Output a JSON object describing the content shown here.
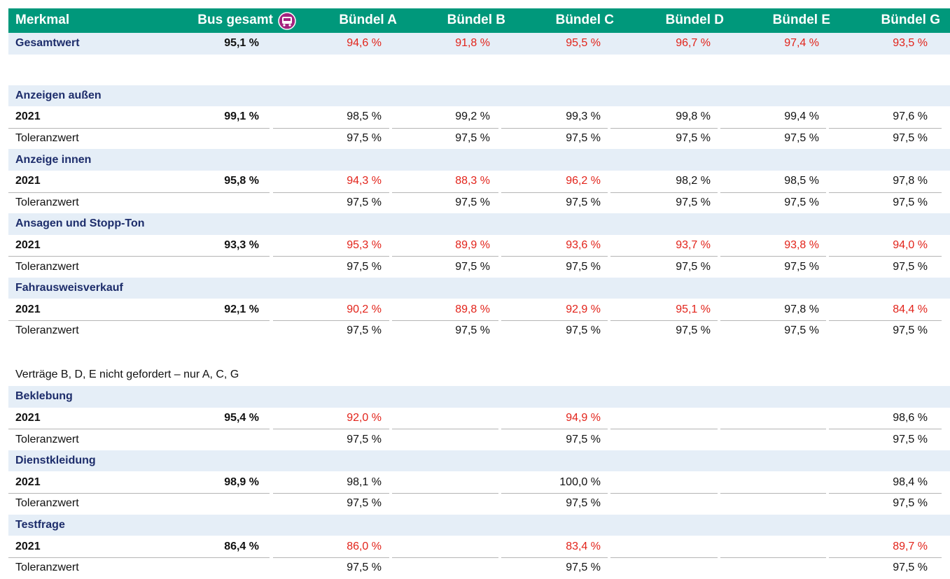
{
  "header": {
    "columns": [
      "Merkmal",
      "Bus gesamt",
      "Bündel A",
      "Bündel B",
      "Bündel C",
      "Bündel D",
      "Bündel E",
      "Bündel G"
    ]
  },
  "summary": {
    "label": "Gesamtwert",
    "total": "95,1 %",
    "values": [
      {
        "text": "94,6 %",
        "color": "#e2231a"
      },
      {
        "text": "91,8 %",
        "color": "#e2231a"
      },
      {
        "text": "95,5 %",
        "color": "#e2231a"
      },
      {
        "text": "96,7 %",
        "color": "#e2231a"
      },
      {
        "text": "97,4 %",
        "color": "#e2231a"
      },
      {
        "text": "93,5 %",
        "color": "#e2231a"
      }
    ]
  },
  "groups_1": [
    {
      "title": "Anzeigen außen",
      "rows": [
        {
          "label": "2021",
          "total": "99,1 %",
          "values": [
            "98,5 %",
            "99,2 %",
            "99,3 %",
            "99,8 %",
            "99,4 %",
            "97,6 %"
          ]
        },
        {
          "label": "Toleranzwert",
          "values": [
            "97,5 %",
            "97,5 %",
            "97,5 %",
            "97,5 %",
            "97,5 %",
            "97,5 %"
          ]
        }
      ]
    },
    {
      "title": "Anzeige innen",
      "rows": [
        {
          "label": "2021",
          "total": "95,8 %",
          "values": [
            {
              "text": "94,3 %",
              "color": "#e2231a"
            },
            {
              "text": "88,3 %",
              "color": "#e2231a"
            },
            {
              "text": "96,2 %",
              "color": "#e2231a"
            },
            "98,2 %",
            "98,5 %",
            "97,8 %"
          ]
        },
        {
          "label": "Toleranzwert",
          "values": [
            "97,5 %",
            "97,5 %",
            "97,5 %",
            "97,5 %",
            "97,5 %",
            "97,5 %"
          ]
        }
      ]
    },
    {
      "title": "Ansagen und Stopp-Ton",
      "rows": [
        {
          "label": "2021",
          "total": "93,3 %",
          "values": [
            {
              "text": "95,3 %",
              "color": "#e2231a"
            },
            {
              "text": "89,9 %",
              "color": "#e2231a"
            },
            {
              "text": "93,6 %",
              "color": "#e2231a"
            },
            {
              "text": "93,7 %",
              "color": "#e2231a"
            },
            {
              "text": "93,8 %",
              "color": "#e2231a"
            },
            {
              "text": "94,0 %",
              "color": "#e2231a"
            }
          ]
        },
        {
          "label": "Toleranzwert",
          "values": [
            "97,5 %",
            "97,5 %",
            "97,5 %",
            "97,5 %",
            "97,5 %",
            "97,5 %"
          ]
        }
      ]
    },
    {
      "title": "Fahrausweisverkauf",
      "rows": [
        {
          "label": "2021",
          "total": "92,1 %",
          "values": [
            {
              "text": "90,2 %",
              "color": "#e2231a"
            },
            {
              "text": "89,8 %",
              "color": "#e2231a"
            },
            {
              "text": "92,9 %",
              "color": "#e2231a"
            },
            {
              "text": "95,1 %",
              "color": "#e2231a"
            },
            "97,8 %",
            {
              "text": "84,4 %",
              "color": "#e2231a"
            }
          ]
        },
        {
          "label": "Toleranzwert",
          "values": [
            "97,5 %",
            "97,5 %",
            "97,5 %",
            "97,5 %",
            "97,5 %",
            "97,5 %"
          ]
        }
      ]
    }
  ],
  "note": "Verträge B, D, E nicht gefordert – nur A, C, G",
  "groups_2": [
    {
      "title": "Beklebung",
      "rows": [
        {
          "label": "2021",
          "total": "95,4 %",
          "values": [
            {
              "text": "92,0 %",
              "color": "#e2231a"
            },
            null,
            {
              "text": "94,9 %",
              "color": "#e2231a"
            },
            null,
            null,
            "98,6 %"
          ]
        },
        {
          "label": "Toleranzwert",
          "values": [
            "97,5 %",
            null,
            "97,5 %",
            null,
            null,
            "97,5 %"
          ]
        }
      ]
    },
    {
      "title": "Dienstkleidung",
      "rows": [
        {
          "label": "2021",
          "total": "98,9 %",
          "values": [
            "98,1 %",
            null,
            "100,0 %",
            null,
            null,
            "98,4 %"
          ]
        },
        {
          "label": "Toleranzwert",
          "values": [
            "97,5 %",
            null,
            "97,5 %",
            null,
            null,
            "97,5 %"
          ]
        }
      ]
    },
    {
      "title": "Testfrage",
      "rows": [
        {
          "label": "2021",
          "total": "86,4 %",
          "values": [
            {
              "text": "86,0 %",
              "color": "#e2231a"
            },
            null,
            {
              "text": "83,4 %",
              "color": "#e2231a"
            },
            null,
            null,
            {
              "text": "89,7 %",
              "color": "#e2231a"
            }
          ]
        },
        {
          "label": "Toleranzwert",
          "values": [
            "97,5 %",
            null,
            "97,5 %",
            null,
            null,
            "97,5 %"
          ]
        }
      ]
    }
  ]
}
